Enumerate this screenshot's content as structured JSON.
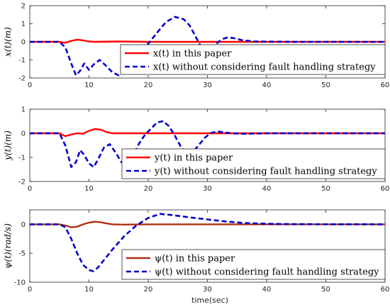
{
  "chart_data": [
    {
      "type": "line",
      "ylabel": "x(t)(m)",
      "xlim": [
        0,
        60
      ],
      "ylim": [
        -2,
        2
      ],
      "xticks": [
        0,
        10,
        20,
        30,
        40,
        50,
        60
      ],
      "yticks": [
        -2,
        -1,
        0,
        1,
        2
      ],
      "grid": false,
      "legend": "bottom-right",
      "series": [
        {
          "name": "x(t) in this paper",
          "color": "#ff0000",
          "style": "solid",
          "points": [
            [
              0,
              0
            ],
            [
              5,
              0
            ],
            [
              6,
              -0.05
            ],
            [
              7,
              0.05
            ],
            [
              8,
              0.12
            ],
            [
              9,
              0.08
            ],
            [
              10,
              0.02
            ],
            [
              11,
              0.0
            ],
            [
              15,
              0.02
            ],
            [
              20,
              0.0
            ],
            [
              60,
              0
            ]
          ]
        },
        {
          "name": "x(t) without considering fault handling strategy",
          "color": "#0000cc",
          "style": "dashed",
          "points": [
            [
              0,
              0
            ],
            [
              5,
              0
            ],
            [
              6,
              -0.3
            ],
            [
              7,
              -1.2
            ],
            [
              7.8,
              -1.85
            ],
            [
              8.5,
              -1.6
            ],
            [
              9.2,
              -1.2
            ],
            [
              10,
              -1.55
            ],
            [
              10.8,
              -1.25
            ],
            [
              11.8,
              -1.0
            ],
            [
              12.8,
              -1.3
            ],
            [
              14,
              -1.7
            ],
            [
              15,
              -1.85
            ],
            [
              16,
              -1.5
            ],
            [
              17,
              -1.2
            ],
            [
              18,
              -1.0
            ],
            [
              19,
              -0.6
            ],
            [
              20,
              -0.1
            ],
            [
              21,
              0.3
            ],
            [
              22,
              0.7
            ],
            [
              23,
              1.1
            ],
            [
              24.5,
              1.38
            ],
            [
              26,
              1.25
            ],
            [
              27,
              0.9
            ],
            [
              28,
              0.3
            ],
            [
              28.8,
              -0.2
            ],
            [
              29.5,
              -0.5
            ],
            [
              30.5,
              -0.35
            ],
            [
              31.5,
              -0.1
            ],
            [
              32.5,
              0.15
            ],
            [
              33.5,
              0.25
            ],
            [
              34.5,
              0.2
            ],
            [
              36,
              0.08
            ],
            [
              38,
              0.02
            ],
            [
              40,
              0.01
            ],
            [
              45,
              0
            ],
            [
              60,
              0
            ]
          ]
        }
      ]
    },
    {
      "type": "line",
      "ylabel": "y(t)(m)",
      "xlim": [
        0,
        60
      ],
      "ylim": [
        -2,
        1
      ],
      "xticks": [
        0,
        10,
        20,
        30,
        40,
        50,
        60
      ],
      "yticks": [
        -2,
        -1,
        0,
        1
      ],
      "grid": false,
      "legend": "bottom-right",
      "series": [
        {
          "name": "y(t) in this paper",
          "color": "#ff0000",
          "style": "solid",
          "points": [
            [
              0,
              0
            ],
            [
              5,
              0
            ],
            [
              6,
              -0.12
            ],
            [
              7,
              -0.05
            ],
            [
              8,
              0.0
            ],
            [
              9,
              -0.02
            ],
            [
              10,
              0.1
            ],
            [
              11,
              0.18
            ],
            [
              12,
              0.15
            ],
            [
              13,
              0.05
            ],
            [
              14,
              0.0
            ],
            [
              20,
              0.0
            ],
            [
              60,
              0
            ]
          ]
        },
        {
          "name": "y(t) without considering fault handling strategy",
          "color": "#0000cc",
          "style": "dashed",
          "points": [
            [
              0,
              0
            ],
            [
              5,
              0
            ],
            [
              6,
              -0.5
            ],
            [
              7,
              -1.4
            ],
            [
              7.8,
              -1.2
            ],
            [
              8.5,
              -0.7
            ],
            [
              9.2,
              -0.9
            ],
            [
              10,
              -1.25
            ],
            [
              10.8,
              -1.4
            ],
            [
              11.5,
              -1.1
            ],
            [
              12.5,
              -0.6
            ],
            [
              13.5,
              -0.45
            ],
            [
              14.5,
              -0.8
            ],
            [
              15.5,
              -1.2
            ],
            [
              16.5,
              -1.35
            ],
            [
              17.5,
              -0.9
            ],
            [
              18.5,
              -0.4
            ],
            [
              19.5,
              -0.05
            ],
            [
              20.5,
              0.2
            ],
            [
              21.5,
              0.45
            ],
            [
              22.5,
              0.5
            ],
            [
              23.5,
              0.3
            ],
            [
              24.5,
              -0.1
            ],
            [
              25.5,
              -0.55
            ],
            [
              26.5,
              -0.85
            ],
            [
              27.5,
              -0.8
            ],
            [
              28.5,
              -0.5
            ],
            [
              29.5,
              -0.2
            ],
            [
              30.5,
              0.0
            ],
            [
              31.5,
              0.08
            ],
            [
              32.5,
              0.05
            ],
            [
              34,
              0.0
            ],
            [
              36,
              -0.02
            ],
            [
              40,
              0
            ],
            [
              60,
              0
            ]
          ]
        }
      ]
    },
    {
      "type": "line",
      "ylabel": "ψ(t)(rad/s)",
      "xlim": [
        0,
        60
      ],
      "ylim": [
        -10,
        2.5
      ],
      "xticks": [
        0,
        10,
        20,
        30,
        40,
        50,
        60
      ],
      "yticks": [
        -10,
        -5,
        0
      ],
      "grid": false,
      "legend": "bottom-right",
      "series": [
        {
          "name": "ψ(t) in this paper",
          "color": "#b03010",
          "style": "solid",
          "points": [
            [
              0,
              0
            ],
            [
              5,
              0
            ],
            [
              6,
              -0.2
            ],
            [
              7,
              -0.5
            ],
            [
              8,
              -0.4
            ],
            [
              9,
              0.0
            ],
            [
              10,
              0.3
            ],
            [
              11,
              0.45
            ],
            [
              12,
              0.35
            ],
            [
              13,
              0.15
            ],
            [
              14,
              0.0
            ],
            [
              16,
              -0.05
            ],
            [
              20,
              0
            ],
            [
              60,
              0
            ]
          ]
        },
        {
          "name": "ψ(t) without considering fault handling strategy",
          "color": "#0000cc",
          "style": "dashed",
          "points": [
            [
              0,
              0
            ],
            [
              5,
              0
            ],
            [
              6,
              -0.5
            ],
            [
              7,
              -2.5
            ],
            [
              8,
              -5.0
            ],
            [
              9,
              -7.0
            ],
            [
              10,
              -7.9
            ],
            [
              10.7,
              -8.1
            ],
            [
              11.5,
              -7.5
            ],
            [
              12.5,
              -6.2
            ],
            [
              14,
              -4.3
            ],
            [
              16,
              -2.0
            ],
            [
              18,
              -0.2
            ],
            [
              20,
              1.1
            ],
            [
              22,
              1.8
            ],
            [
              24,
              1.6
            ],
            [
              27,
              1.2
            ],
            [
              30,
              0.85
            ],
            [
              33,
              0.5
            ],
            [
              36,
              0.25
            ],
            [
              40,
              0.1
            ],
            [
              45,
              0.02
            ],
            [
              60,
              0
            ]
          ]
        }
      ]
    }
  ],
  "xlabel": "time(sec)"
}
